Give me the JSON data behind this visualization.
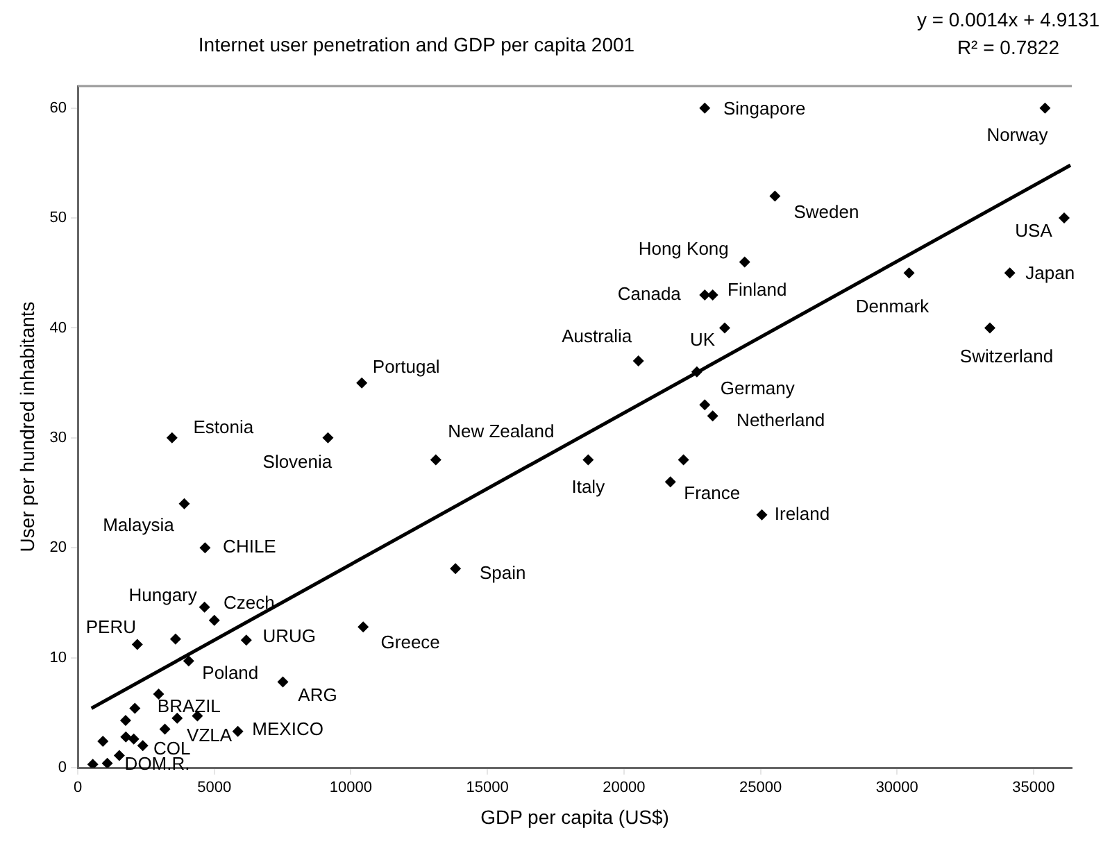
{
  "chart_data": {
    "type": "scatter",
    "title": "Internet user penetration and GDP per capita 2001",
    "xlabel": "GDP per capita (US$)",
    "ylabel": "User per hundred inhabitants",
    "xlim": [
      0,
      36400
    ],
    "ylim": [
      0,
      62
    ],
    "xticks": [
      0,
      5000,
      10000,
      15000,
      20000,
      25000,
      30000,
      35000
    ],
    "yticks": [
      0,
      10,
      20,
      30,
      40,
      50,
      60
    ],
    "grid": false,
    "legend": false,
    "marker": "diamond",
    "series": [
      {
        "type": "scatter",
        "color": "#000000",
        "x": [
          22960,
          35420,
          25530,
          24420,
          22960,
          23250,
          23690,
          20530,
          22670,
          22960,
          23250,
          30440,
          34130,
          36120,
          33400,
          13110,
          18690,
          22180,
          21700,
          25050,
          10400,
          9160,
          3450,
          3900,
          4660,
          13830,
          10450,
          4640,
          5000,
          2180,
          3580,
          6170,
          4060,
          7510,
          2960,
          2090,
          1750,
          3640,
          3190,
          4380,
          5860,
          1760,
          2050,
          2380,
          920,
          1520,
          1080,
          550
        ],
        "values": [
          60,
          60,
          52,
          46,
          43,
          43,
          40,
          37,
          36,
          33,
          32,
          45,
          45,
          50,
          40,
          28,
          28,
          28,
          26,
          23,
          35,
          30,
          30,
          24,
          20,
          18.1,
          12.8,
          14.6,
          13.4,
          11.2,
          11.7,
          11.6,
          9.7,
          7.8,
          6.7,
          5.4,
          4.3,
          4.5,
          3.5,
          4.7,
          3.3,
          2.8,
          2.6,
          2.0,
          2.4,
          1.1,
          0.4,
          0.3
        ],
        "value_labels": [
          "Singapore",
          "Norway",
          "Sweden",
          "Hong Kong",
          "Canada",
          "Finland",
          "UK",
          "Australia",
          null,
          "Germany",
          "Netherland",
          "Denmark",
          "Japan",
          "USA",
          "Switzerland",
          "New Zealand",
          "Italy",
          null,
          "France",
          "Ireland",
          "Portugal",
          "Slovenia",
          "Estonia",
          "Malaysia",
          "CHILE",
          "Spain",
          "Greece",
          "Hungary",
          "Czech",
          "PERU",
          null,
          "URUG",
          "Poland",
          "ARG",
          null,
          "BRAZIL",
          null,
          null,
          "VZLA",
          null,
          "MEXICO",
          null,
          null,
          "COL",
          null,
          null,
          "DOM.R.",
          null
        ]
      },
      {
        "type": "line",
        "color": "#000000",
        "marker": "none",
        "line_style": "solid",
        "x": [
          500,
          36350
        ],
        "values": [
          5.4,
          54.8
        ]
      }
    ],
    "annotations": [
      "y = 0.0014x + 4.9131",
      "R² = 0.7822"
    ]
  }
}
